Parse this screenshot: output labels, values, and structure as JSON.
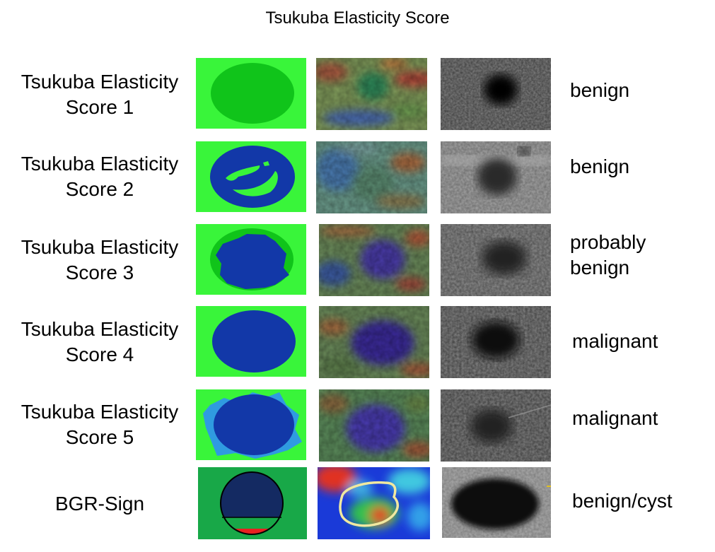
{
  "title": "Tsukuba Elasticity Score",
  "rows": [
    {
      "label_line1": "Tsukuba Elasticity",
      "label_line2": "Score 1",
      "outcome": "benign"
    },
    {
      "label_line1": "Tsukuba Elasticity",
      "label_line2": "Score 2",
      "outcome": "benign"
    },
    {
      "label_line1": "Tsukuba Elasticity",
      "label_line2": "Score 3",
      "outcome_line1": "probably",
      "outcome_line2": "benign"
    },
    {
      "label_line1": "Tsukuba Elasticity",
      "label_line2": "Score 4",
      "outcome": "malignant"
    },
    {
      "label_line1": "Tsukuba Elasticity",
      "label_line2": "Score 5",
      "outcome": "malignant"
    },
    {
      "label": "BGR-Sign",
      "outcome": "benign/cyst"
    }
  ],
  "colors": {
    "soft_green": "#39f53a",
    "lesion_green": "#10c41a",
    "hard_blue": "#1238a8",
    "edge_blue": "#2f9be0",
    "bgr_green": "#18a848",
    "bgr_navy": "#142a62",
    "bgr_red": "#e82020"
  }
}
